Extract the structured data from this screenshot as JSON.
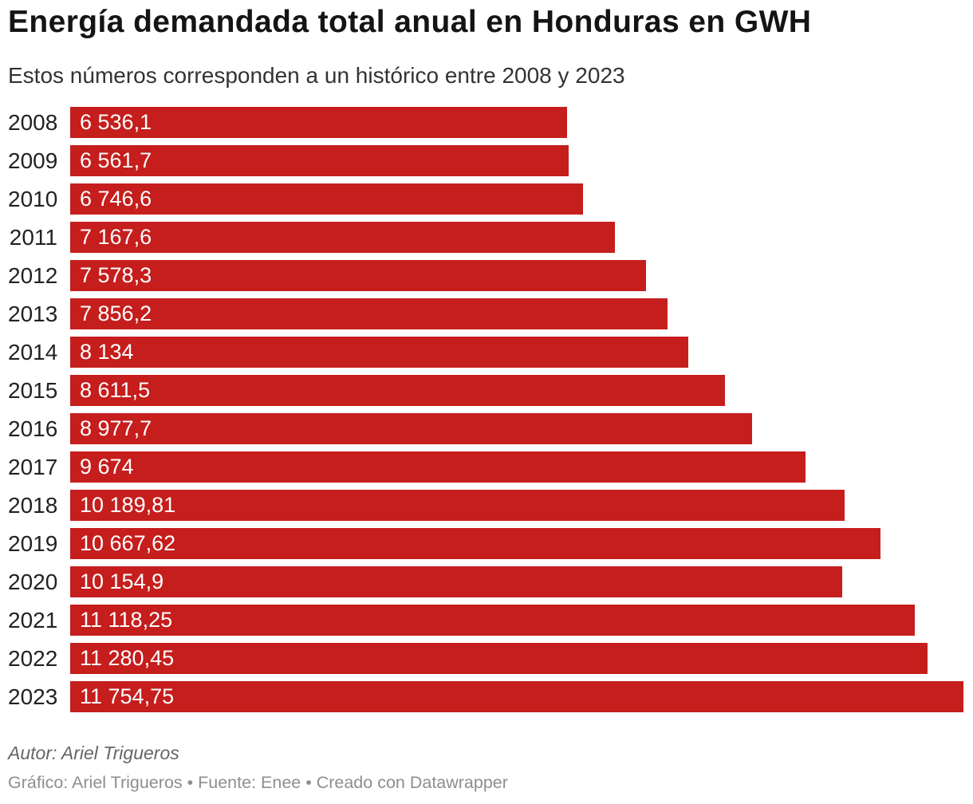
{
  "header": {
    "title": "Energía demandada total anual en Honduras en GWH",
    "subtitle": "Estos números corresponden a un histórico entre 2008 y 2023"
  },
  "chart_data": {
    "type": "bar",
    "orientation": "horizontal",
    "title": "Energía demandada total anual en Honduras en GWH",
    "subtitle": "Estos números corresponden a un histórico entre 2008 y 2023",
    "unit": "GWH",
    "categories": [
      "2008",
      "2009",
      "2010",
      "2011",
      "2012",
      "2013",
      "2014",
      "2015",
      "2016",
      "2017",
      "2018",
      "2019",
      "2020",
      "2021",
      "2022",
      "2023"
    ],
    "values": [
      6536.1,
      6561.7,
      6746.6,
      7167.6,
      7578.3,
      7856.2,
      8134,
      8611.5,
      8977.7,
      9674,
      10189.81,
      10667.62,
      10154.9,
      11118.25,
      11280.45,
      11754.75
    ],
    "value_labels": [
      "6 536,1",
      "6 561,7",
      "6 746,6",
      "7 167,6",
      "7 578,3",
      "7 856,2",
      "8 134",
      "8 611,5",
      "8 977,7",
      "9 674",
      "10 189,81",
      "10 667,62",
      "10 154,9",
      "11 118,25",
      "11 280,45",
      "11 754,75"
    ],
    "xlim": [
      0,
      11754.75
    ],
    "grid": false,
    "legend": false,
    "value_label_position": "inside-left",
    "bar_color": "#c51e1d"
  },
  "footer": {
    "author_note": "Autor: Ariel Trigueros",
    "byline": "Gráfico: Ariel Trigueros • Fuente: Enee • Creado con Datawrapper"
  },
  "colors": {
    "background": "#ffffff",
    "bar": "#c51e1d",
    "title_text": "#141414",
    "subtitle_text": "#333333",
    "year_label_text": "#222222",
    "value_label_text": "#ffffff",
    "author_text": "#666666",
    "byline_text": "#8e8e8e"
  }
}
